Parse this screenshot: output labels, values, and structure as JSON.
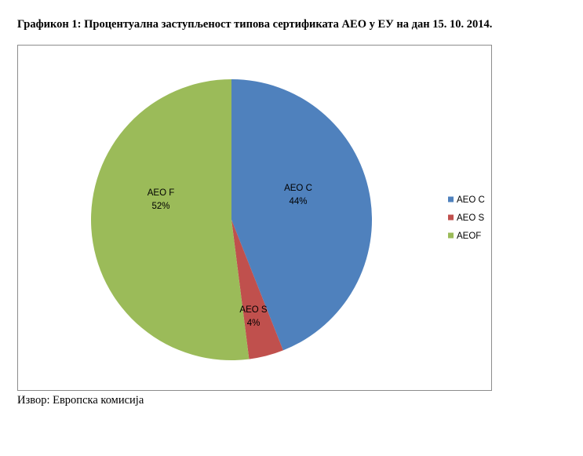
{
  "caption": "Графикон 1: Процентуална заступљеност типова сертификата АЕО у ЕУ на дан 15. 10. 2014.",
  "source": "Извор: Европска комисија",
  "chart_data": {
    "type": "pie",
    "slices": [
      {
        "label_line1": "AEO C",
        "label_line2": "44%",
        "value": 44,
        "color": "#4f81bd"
      },
      {
        "label_line1": "AEO S",
        "label_line2": "4%",
        "value": 4,
        "color": "#c0504d"
      },
      {
        "label_line1": "AEO F",
        "label_line2": "52%",
        "value": 52,
        "color": "#9bbb59"
      }
    ],
    "legend": {
      "position": "right",
      "entries": [
        "AEO C",
        "AEO S",
        "AEOF"
      ]
    }
  }
}
